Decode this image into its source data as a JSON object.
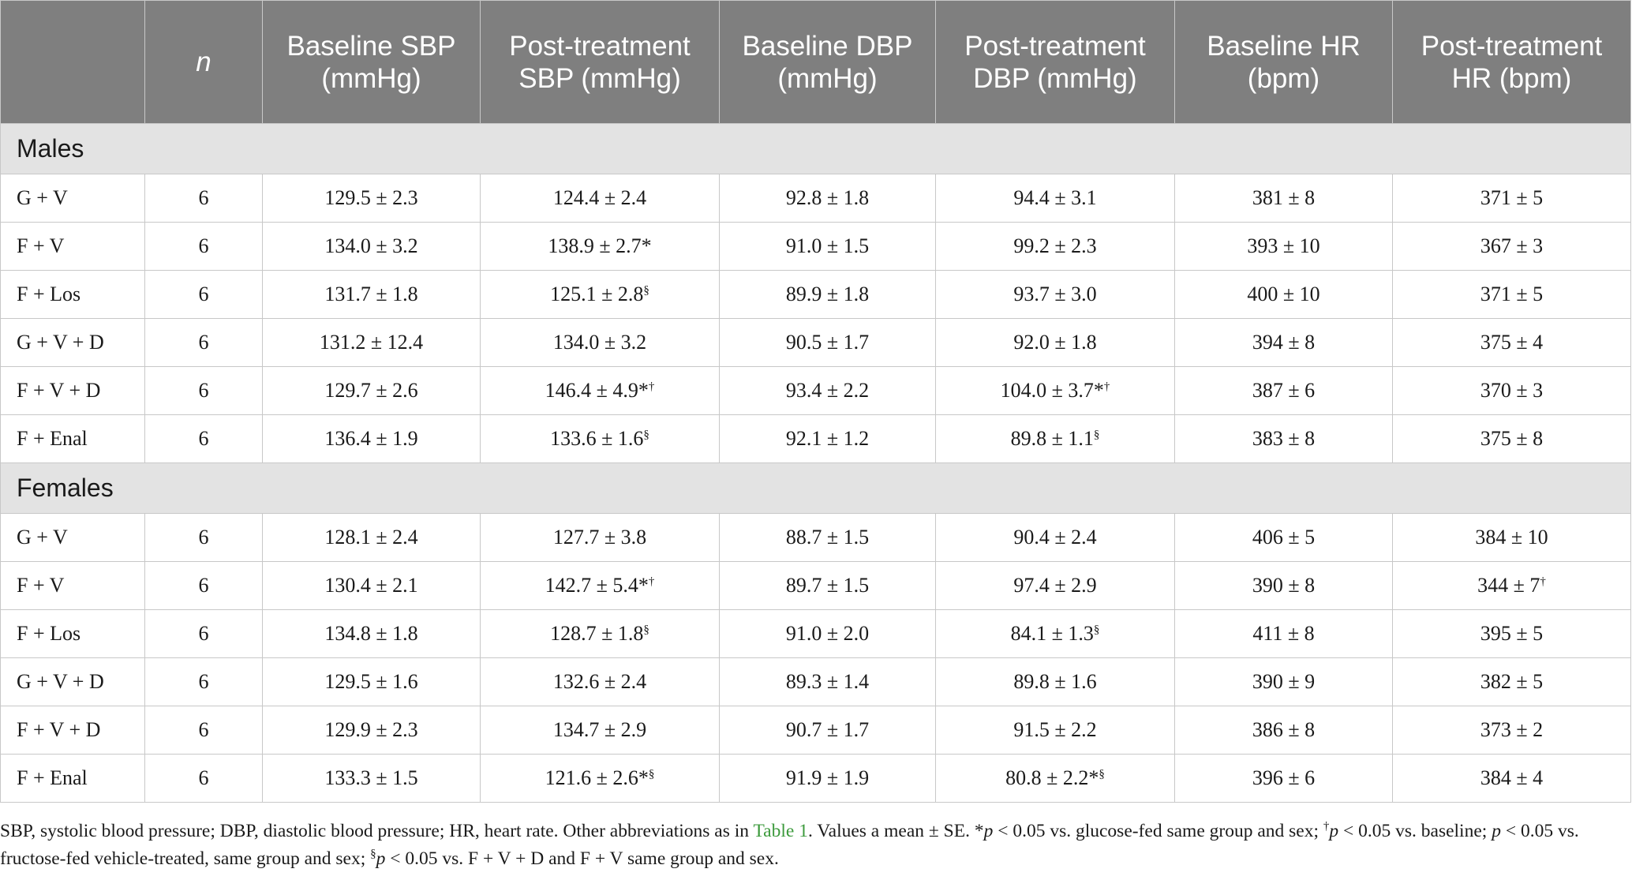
{
  "columns": [
    "",
    "n",
    "Baseline SBP (mmHg)",
    "Post-treatment SBP (mmHg)",
    "Baseline DBP (mmHg)",
    "Post-treatment DBP (mmHg)",
    "Baseline HR (bpm)",
    "Post-treatment HR (bpm)"
  ],
  "sections": [
    {
      "label": "Males",
      "rows": [
        {
          "group": "G + V",
          "n": "6",
          "baseline_sbp": "129.5 ± 2.3",
          "post_sbp": "124.4 ± 2.4",
          "post_sbp_sup": "",
          "baseline_dbp": "92.8 ± 1.8",
          "post_dbp": "94.4 ± 3.1",
          "post_dbp_sup": "",
          "baseline_hr": "381 ± 8",
          "post_hr": "371 ± 5",
          "post_hr_sup": ""
        },
        {
          "group": "F + V",
          "n": "6",
          "baseline_sbp": "134.0 ± 3.2",
          "post_sbp": "138.9 ± 2.7*",
          "post_sbp_sup": "",
          "baseline_dbp": "91.0 ± 1.5",
          "post_dbp": "99.2 ± 2.3",
          "post_dbp_sup": "",
          "baseline_hr": "393 ± 10",
          "post_hr": "367 ± 3",
          "post_hr_sup": ""
        },
        {
          "group": "F + Los",
          "n": "6",
          "baseline_sbp": "131.7 ± 1.8",
          "post_sbp": "125.1 ± 2.8",
          "post_sbp_sup": "§",
          "baseline_dbp": "89.9 ± 1.8",
          "post_dbp": "93.7 ± 3.0",
          "post_dbp_sup": "",
          "baseline_hr": "400 ± 10",
          "post_hr": "371 ± 5",
          "post_hr_sup": ""
        },
        {
          "group": "G + V + D",
          "n": "6",
          "baseline_sbp": "131.2 ± 12.4",
          "post_sbp": "134.0 ± 3.2",
          "post_sbp_sup": "",
          "baseline_dbp": "90.5 ± 1.7",
          "post_dbp": "92.0 ± 1.8",
          "post_dbp_sup": "",
          "baseline_hr": "394 ± 8",
          "post_hr": "375 ± 4",
          "post_hr_sup": ""
        },
        {
          "group": "F + V + D",
          "n": "6",
          "baseline_sbp": "129.7 ± 2.6",
          "post_sbp": "146.4 ± 4.9*",
          "post_sbp_sup": "†",
          "baseline_dbp": "93.4 ± 2.2",
          "post_dbp": "104.0 ± 3.7*",
          "post_dbp_sup": "†",
          "baseline_hr": "387 ± 6",
          "post_hr": "370 ± 3",
          "post_hr_sup": ""
        },
        {
          "group": "F + Enal",
          "n": "6",
          "baseline_sbp": "136.4 ± 1.9",
          "post_sbp": "133.6 ± 1.6",
          "post_sbp_sup": "§",
          "baseline_dbp": "92.1 ± 1.2",
          "post_dbp": "89.8 ± 1.1",
          "post_dbp_sup": "§",
          "baseline_hr": "383 ± 8",
          "post_hr": "375 ± 8",
          "post_hr_sup": ""
        }
      ]
    },
    {
      "label": "Females",
      "rows": [
        {
          "group": "G + V",
          "n": "6",
          "baseline_sbp": "128.1 ± 2.4",
          "post_sbp": "127.7 ± 3.8",
          "post_sbp_sup": "",
          "baseline_dbp": "88.7 ± 1.5",
          "post_dbp": "90.4 ± 2.4",
          "post_dbp_sup": "",
          "baseline_hr": "406 ± 5",
          "post_hr": "384 ± 10",
          "post_hr_sup": ""
        },
        {
          "group": "F + V",
          "n": "6",
          "baseline_sbp": "130.4 ± 2.1",
          "post_sbp": "142.7 ± 5.4*",
          "post_sbp_sup": "†",
          "baseline_dbp": "89.7 ± 1.5",
          "post_dbp": "97.4 ± 2.9",
          "post_dbp_sup": "",
          "baseline_hr": "390 ± 8",
          "post_hr": "344 ± 7",
          "post_hr_sup": "†"
        },
        {
          "group": "F + Los",
          "n": "6",
          "baseline_sbp": "134.8 ± 1.8",
          "post_sbp": "128.7 ± 1.8",
          "post_sbp_sup": "§",
          "baseline_dbp": "91.0 ± 2.0",
          "post_dbp": "84.1 ± 1.3",
          "post_dbp_sup": "§",
          "baseline_hr": "411 ± 8",
          "post_hr": "395 ± 5",
          "post_hr_sup": ""
        },
        {
          "group": "G + V + D",
          "n": "6",
          "baseline_sbp": "129.5 ± 1.6",
          "post_sbp": "132.6 ± 2.4",
          "post_sbp_sup": "",
          "baseline_dbp": "89.3 ± 1.4",
          "post_dbp": "89.8 ± 1.6",
          "post_dbp_sup": "",
          "baseline_hr": "390 ± 9",
          "post_hr": "382 ± 5",
          "post_hr_sup": ""
        },
        {
          "group": "F + V + D",
          "n": "6",
          "baseline_sbp": "129.9 ± 2.3",
          "post_sbp": "134.7 ± 2.9",
          "post_sbp_sup": "",
          "baseline_dbp": "90.7 ± 1.7",
          "post_dbp": "91.5 ± 2.2",
          "post_dbp_sup": "",
          "baseline_hr": "386 ± 8",
          "post_hr": "373 ± 2",
          "post_hr_sup": ""
        },
        {
          "group": "F + Enal",
          "n": "6",
          "baseline_sbp": "133.3 ± 1.5",
          "post_sbp": "121.6 ± 2.6*",
          "post_sbp_sup": "§",
          "baseline_dbp": "91.9 ± 1.9",
          "post_dbp": "80.8 ± 2.2*",
          "post_dbp_sup": "§",
          "baseline_hr": "396 ± 6",
          "post_hr": "384 ± 4",
          "post_hr_sup": ""
        }
      ]
    }
  ],
  "footnote": {
    "p1": "SBP, systolic blood pressure; DBP, diastolic blood pressure; HR, heart rate. Other abbreviations as in ",
    "link": "Table 1",
    "p2": ". Values a mean ± SE. *",
    "p3": "p",
    "p4": " < 0.05 vs. glucose-fed same group and sex; ",
    "sup1": "†",
    "p5": "p",
    "p6": " < 0.05 vs. baseline; ",
    "p7": "p",
    "p8": " < 0.05 vs. fructose-fed vehicle-treated, same group and sex; ",
    "sup2": "§",
    "p9": "p",
    "p10": " < 0.05 vs. F + V + D and F + V same group and sex."
  }
}
